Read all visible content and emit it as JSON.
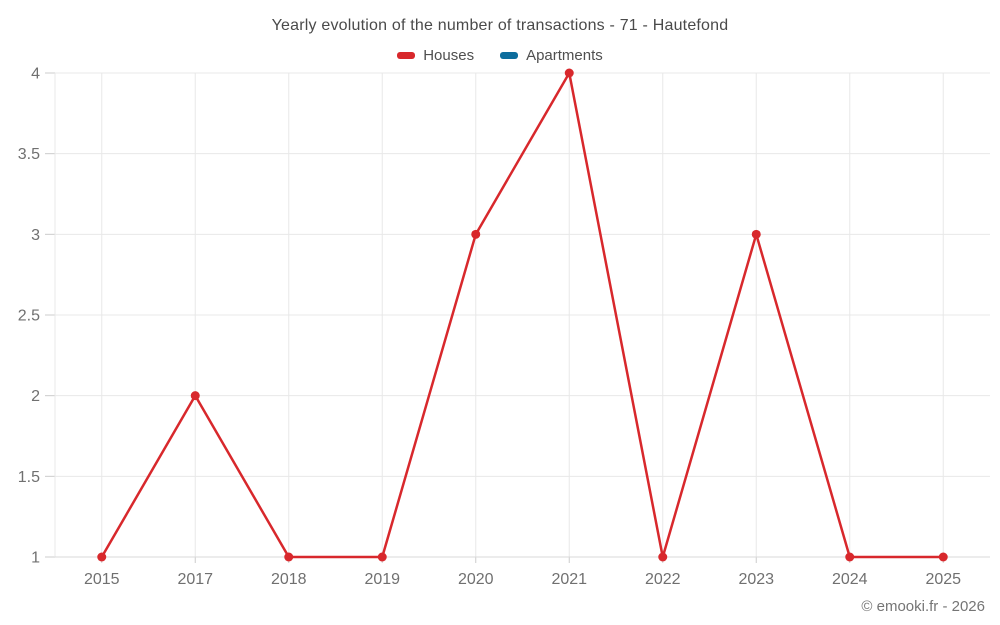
{
  "title": "Yearly evolution of the number of transactions - 71 - Hautefond",
  "legend": {
    "items": [
      {
        "label": "Houses",
        "color": "#d8282c"
      },
      {
        "label": "Apartments",
        "color": "#0d6d9d"
      }
    ]
  },
  "footer": {
    "credit": "© emooki.fr - 2026"
  },
  "colors": {
    "grid": "#e8e8e8",
    "axis": "#d9d9d9",
    "tick": "#cccccc",
    "axis_label": "#707070",
    "title": "#4a4a4a"
  },
  "chart_data": {
    "type": "line",
    "categories": [
      "2015",
      "2017",
      "2018",
      "2019",
      "2020",
      "2021",
      "2022",
      "2023",
      "2024",
      "2025"
    ],
    "series": [
      {
        "name": "Houses",
        "color": "#d8282c",
        "values": [
          1,
          2,
          1,
          1,
          3,
          4,
          1,
          3,
          1,
          1
        ]
      },
      {
        "name": "Apartments",
        "color": "#0d6d9d",
        "values": []
      }
    ],
    "yticks": [
      1,
      1.5,
      2,
      2.5,
      3,
      3.5,
      4
    ],
    "ylim": [
      1,
      4
    ],
    "xlabel": "",
    "ylabel": "",
    "grid": true,
    "legend_position": "top",
    "title": "Yearly evolution of the number of transactions - 71 - Hautefond"
  }
}
